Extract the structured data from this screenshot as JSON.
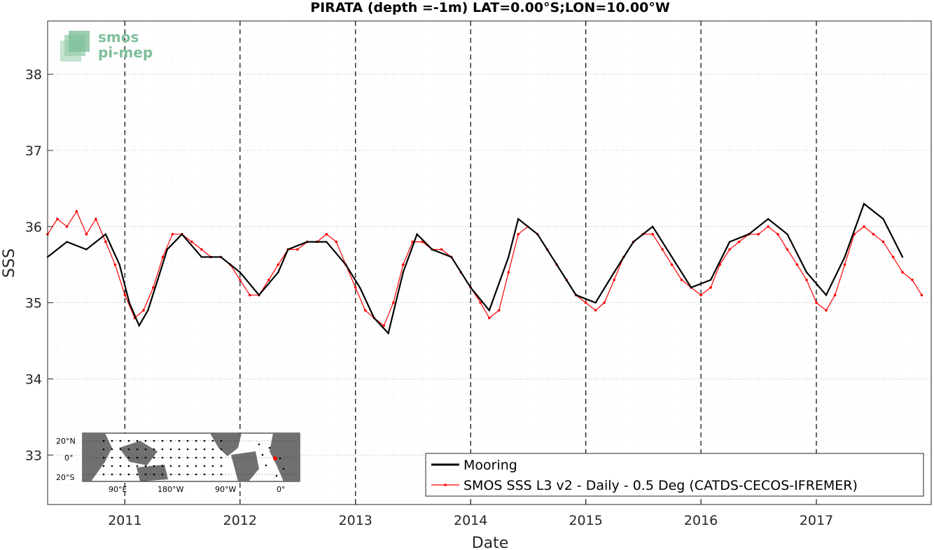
{
  "chart_data": {
    "type": "line",
    "title": "PIRATA (depth =-1m) LAT=0.00°S;LON=10.00°W",
    "xlabel": "Date",
    "ylabel": "SSS",
    "xlim": [
      "2010-05-01",
      "2017-12-31"
    ],
    "ylim": [
      32.35,
      38.7
    ],
    "x_ticks": [
      "2011",
      "2012",
      "2013",
      "2014",
      "2015",
      "2016",
      "2017"
    ],
    "y_ticks": [
      "33",
      "34",
      "35",
      "36",
      "37",
      "38"
    ],
    "grid": true,
    "minor_grid": true,
    "year_markers": "dashed vertical lines at each Jan 1",
    "legend": {
      "placement": "bottom-right",
      "entries": [
        "Mooring",
        "SMOS SSS L3 v2 - Daily - 0.5 Deg (CATDS-CECOS-IFREMER)"
      ]
    },
    "series": [
      {
        "name": "Mooring",
        "color": "#000000",
        "points": [
          [
            "2010-05-01",
            35.6
          ],
          [
            "2010-07-01",
            35.8
          ],
          [
            "2010-09-01",
            35.7
          ],
          [
            "2010-11-01",
            35.9
          ],
          [
            "2010-12-15",
            35.5
          ],
          [
            "2011-01-15",
            35.0
          ],
          [
            "2011-02-15",
            34.7
          ],
          [
            "2011-03-15",
            34.9
          ],
          [
            "2011-04-15",
            35.3
          ],
          [
            "2011-05-15",
            35.7
          ],
          [
            "2011-07-01",
            35.9
          ],
          [
            "2011-09-01",
            35.6
          ],
          [
            "2011-11-01",
            35.6
          ],
          [
            "2012-01-01",
            35.4
          ],
          [
            "2012-03-01",
            35.1
          ],
          [
            "2012-05-01",
            35.4
          ],
          [
            "2012-06-01",
            35.7
          ],
          [
            "2012-08-01",
            35.8
          ],
          [
            "2012-10-01",
            35.8
          ],
          [
            "2012-12-01",
            35.5
          ],
          [
            "2013-01-15",
            35.2
          ],
          [
            "2013-03-01",
            34.8
          ],
          [
            "2013-04-15",
            34.6
          ],
          [
            "2013-06-01",
            35.4
          ],
          [
            "2013-07-15",
            35.9
          ],
          [
            "2013-09-01",
            35.7
          ],
          [
            "2013-11-01",
            35.6
          ],
          [
            "2014-01-01",
            35.2
          ],
          [
            "2014-03-01",
            34.9
          ],
          [
            "2014-05-01",
            35.6
          ],
          [
            "2014-06-01",
            36.1
          ],
          [
            "2014-08-01",
            35.9
          ],
          [
            "2014-10-01",
            35.5
          ],
          [
            "2014-12-01",
            35.1
          ],
          [
            "2015-02-01",
            35.0
          ],
          [
            "2015-04-01",
            35.4
          ],
          [
            "2015-06-01",
            35.8
          ],
          [
            "2015-08-01",
            36.0
          ],
          [
            "2015-10-01",
            35.6
          ],
          [
            "2015-12-01",
            35.2
          ],
          [
            "2016-02-01",
            35.3
          ],
          [
            "2016-04-01",
            35.8
          ],
          [
            "2016-06-01",
            35.9
          ],
          [
            "2016-08-01",
            36.1
          ],
          [
            "2016-10-01",
            35.9
          ],
          [
            "2016-12-01",
            35.4
          ],
          [
            "2017-02-01",
            35.1
          ],
          [
            "2017-04-01",
            35.6
          ],
          [
            "2017-06-01",
            36.3
          ],
          [
            "2017-08-01",
            36.1
          ],
          [
            "2017-10-01",
            35.6
          ]
        ]
      },
      {
        "name": "SMOS SSS L3 v2 - Daily - 0.5 Deg (CATDS-CECOS-IFREMER)",
        "color": "#ff0000",
        "points": [
          [
            "2010-05-01",
            35.9
          ],
          [
            "2010-06-01",
            36.1
          ],
          [
            "2010-07-01",
            36.0
          ],
          [
            "2010-08-01",
            36.2
          ],
          [
            "2010-09-01",
            35.9
          ],
          [
            "2010-10-01",
            36.1
          ],
          [
            "2010-11-01",
            35.8
          ],
          [
            "2010-12-01",
            35.5
          ],
          [
            "2011-01-01",
            35.1
          ],
          [
            "2011-02-01",
            34.8
          ],
          [
            "2011-03-01",
            34.9
          ],
          [
            "2011-04-01",
            35.2
          ],
          [
            "2011-05-01",
            35.6
          ],
          [
            "2011-06-01",
            35.9
          ],
          [
            "2011-07-01",
            35.9
          ],
          [
            "2011-08-01",
            35.8
          ],
          [
            "2011-09-01",
            35.7
          ],
          [
            "2011-10-01",
            35.6
          ],
          [
            "2011-11-01",
            35.6
          ],
          [
            "2011-12-01",
            35.5
          ],
          [
            "2012-01-01",
            35.3
          ],
          [
            "2012-02-01",
            35.1
          ],
          [
            "2012-03-01",
            35.1
          ],
          [
            "2012-04-01",
            35.3
          ],
          [
            "2012-05-01",
            35.5
          ],
          [
            "2012-06-01",
            35.7
          ],
          [
            "2012-07-01",
            35.7
          ],
          [
            "2012-08-01",
            35.8
          ],
          [
            "2012-09-01",
            35.8
          ],
          [
            "2012-10-01",
            35.9
          ],
          [
            "2012-11-01",
            35.8
          ],
          [
            "2012-12-01",
            35.5
          ],
          [
            "2013-01-01",
            35.2
          ],
          [
            "2013-02-01",
            34.9
          ],
          [
            "2013-03-01",
            34.8
          ],
          [
            "2013-04-01",
            34.7
          ],
          [
            "2013-05-01",
            35.0
          ],
          [
            "2013-06-01",
            35.5
          ],
          [
            "2013-07-01",
            35.8
          ],
          [
            "2013-08-01",
            35.8
          ],
          [
            "2013-09-01",
            35.7
          ],
          [
            "2013-10-01",
            35.7
          ],
          [
            "2013-11-01",
            35.6
          ],
          [
            "2013-12-01",
            35.4
          ],
          [
            "2014-01-01",
            35.2
          ],
          [
            "2014-02-01",
            35.0
          ],
          [
            "2014-03-01",
            34.8
          ],
          [
            "2014-04-01",
            34.9
          ],
          [
            "2014-05-01",
            35.4
          ],
          [
            "2014-06-01",
            35.9
          ],
          [
            "2014-07-01",
            36.0
          ],
          [
            "2014-08-01",
            35.9
          ],
          [
            "2014-09-01",
            35.7
          ],
          [
            "2014-10-01",
            35.5
          ],
          [
            "2014-11-01",
            35.3
          ],
          [
            "2014-12-01",
            35.1
          ],
          [
            "2015-01-01",
            35.0
          ],
          [
            "2015-02-01",
            34.9
          ],
          [
            "2015-03-01",
            35.0
          ],
          [
            "2015-04-01",
            35.3
          ],
          [
            "2015-05-01",
            35.6
          ],
          [
            "2015-06-01",
            35.8
          ],
          [
            "2015-07-01",
            35.9
          ],
          [
            "2015-08-01",
            35.9
          ],
          [
            "2015-09-01",
            35.7
          ],
          [
            "2015-10-01",
            35.5
          ],
          [
            "2015-11-01",
            35.3
          ],
          [
            "2015-12-01",
            35.2
          ],
          [
            "2016-01-01",
            35.1
          ],
          [
            "2016-02-01",
            35.2
          ],
          [
            "2016-03-01",
            35.5
          ],
          [
            "2016-04-01",
            35.7
          ],
          [
            "2016-05-01",
            35.8
          ],
          [
            "2016-06-01",
            35.9
          ],
          [
            "2016-07-01",
            35.9
          ],
          [
            "2016-08-01",
            36.0
          ],
          [
            "2016-09-01",
            35.9
          ],
          [
            "2016-10-01",
            35.7
          ],
          [
            "2016-11-01",
            35.5
          ],
          [
            "2016-12-01",
            35.3
          ],
          [
            "2017-01-01",
            35.0
          ],
          [
            "2017-02-01",
            34.9
          ],
          [
            "2017-03-01",
            35.1
          ],
          [
            "2017-04-01",
            35.5
          ],
          [
            "2017-05-01",
            35.9
          ],
          [
            "2017-06-01",
            36.0
          ],
          [
            "2017-07-01",
            35.9
          ],
          [
            "2017-08-01",
            35.8
          ],
          [
            "2017-09-01",
            35.6
          ],
          [
            "2017-10-01",
            35.4
          ],
          [
            "2017-11-01",
            35.3
          ],
          [
            "2017-12-01",
            35.1
          ]
        ]
      }
    ]
  },
  "logo": {
    "line1": "smos",
    "line2": "pi-mep"
  },
  "inset_map": {
    "lat_labels": [
      "20°N",
      "0°",
      "20°S"
    ],
    "lon_labels": [
      "90°E",
      "180°W",
      "90°W",
      "0°"
    ]
  }
}
